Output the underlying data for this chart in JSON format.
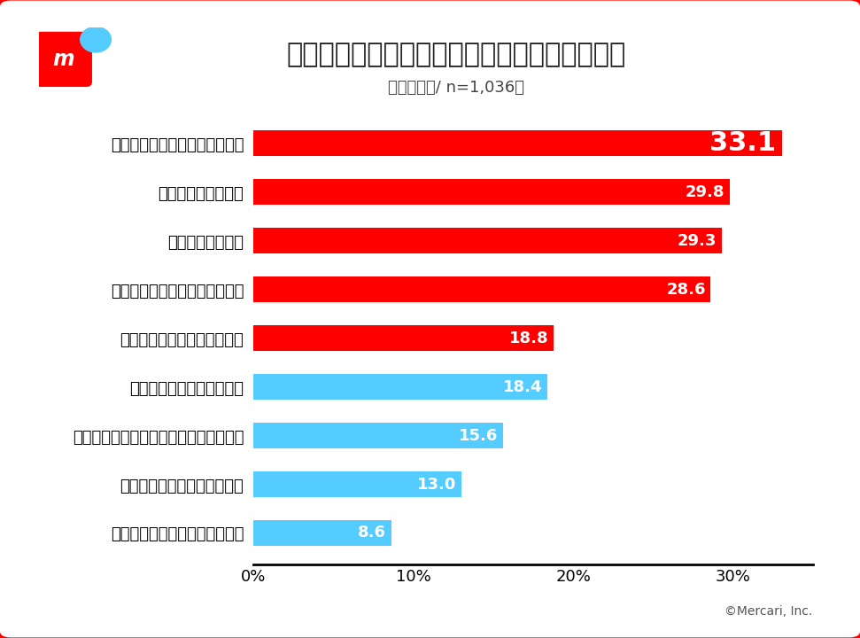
{
  "title": "引っ越し時にやっておけばよかったと思うこと",
  "subtitle": "（複数回答/ n=1,036）",
  "categories": [
    "不要品を処分して荷物を減らす",
    "早めの梱包・荷造り",
    "計画的な家の掃除",
    "粗大ゴミを早めに処分する準備",
    "引っ越し業者への値引き交渉",
    "引っ越し業者の相見積もり",
    "引っ越し先で必要な家財の計画的な購入",
    "繁忙時期をずらして引っ越し",
    "早めのライフライン解約と契約"
  ],
  "values": [
    33.1,
    29.8,
    29.3,
    28.6,
    18.8,
    18.4,
    15.6,
    13.0,
    8.6
  ],
  "colors": [
    "#FF0000",
    "#FF0000",
    "#FF0000",
    "#FF0000",
    "#FF0000",
    "#55CCFF",
    "#55CCFF",
    "#55CCFF",
    "#55CCFF"
  ],
  "xlim": [
    0,
    35
  ],
  "xticks": [
    0,
    10,
    20,
    30
  ],
  "xticklabels": [
    "0%",
    "10%",
    "20%",
    "30%"
  ],
  "background_color": "#FFFFFF",
  "border_color": "#FF0000",
  "title_fontsize": 22,
  "subtitle_fontsize": 13,
  "bar_label_fontsize": 13,
  "first_bar_label_fontsize": 22,
  "ytick_fontsize": 13,
  "xtick_fontsize": 13,
  "copyright": "©Mercari, Inc.",
  "bar_height": 0.52
}
